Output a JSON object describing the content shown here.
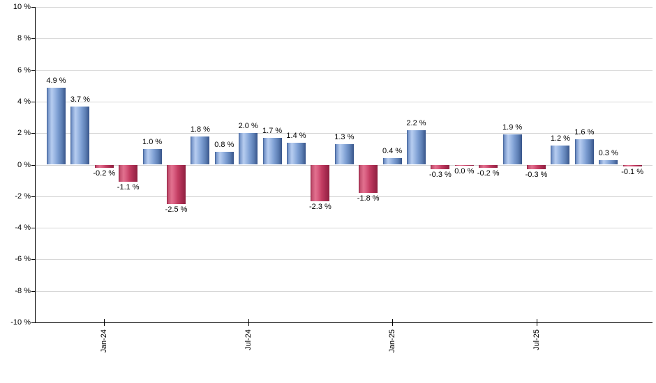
{
  "chart_data": {
    "type": "bar",
    "title": "",
    "xlabel": "",
    "ylabel": "",
    "unit_suffix": " %",
    "values": [
      4.9,
      3.7,
      -0.2,
      -1.1,
      1.0,
      -2.5,
      1.8,
      0.8,
      2.0,
      1.7,
      1.4,
      -2.3,
      1.3,
      -1.8,
      0.4,
      2.2,
      -0.3,
      0.0,
      -0.2,
      1.9,
      -0.3,
      1.2,
      1.6,
      0.3,
      -0.1
    ],
    "value_labels": [
      "4.9 %",
      "3.7 %",
      "-0.2 %",
      "-1.1 %",
      "1.0 %",
      "-2.5 %",
      "1.8 %",
      "0.8 %",
      "2.0 %",
      "1.7 %",
      "1.4 %",
      "-2.3 %",
      "1.3 %",
      "-1.8 %",
      "0.4 %",
      "2.2 %",
      "-0.3 %",
      "0.0 %",
      "-0.2 %",
      "1.9 %",
      "-0.3 %",
      "1.2 %",
      "1.6 %",
      "0.3 %",
      "-0.1 %"
    ],
    "bar_signs": [
      "pos",
      "pos",
      "neg",
      "neg",
      "pos",
      "neg",
      "pos",
      "pos",
      "pos",
      "pos",
      "pos",
      "neg",
      "pos",
      "neg",
      "pos",
      "pos",
      "neg",
      "neg",
      "neg",
      "pos",
      "neg",
      "pos",
      "pos",
      "pos",
      "neg"
    ],
    "ylim": [
      -10,
      10
    ],
    "y_tick_step": 2,
    "y_tick_labels": [
      "10 %",
      "8 %",
      "6 %",
      "4 %",
      "2 %",
      "0 %",
      "-2 %",
      "-4 %",
      "-6 %",
      "-8 %",
      "-10 %"
    ],
    "x_ticks": [
      {
        "label": "Jan-24",
        "bar_index": 2
      },
      {
        "label": "Jul-24",
        "bar_index": 8
      },
      {
        "label": "Jan-25",
        "bar_index": 14
      },
      {
        "label": "Jul-25",
        "bar_index": 20
      }
    ],
    "legend": null,
    "grid": true,
    "colors": {
      "positive_bar": "#7e9fd3",
      "negative_bar": "#c43e63",
      "gridline": "#d6d6d6",
      "axis": "#000000",
      "background": "#ffffff",
      "label_text": "#000000"
    }
  }
}
